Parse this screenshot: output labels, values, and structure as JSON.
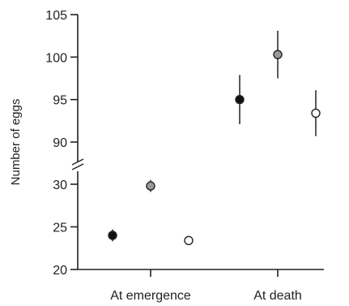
{
  "chart_data": {
    "type": "scatter",
    "ylabel": "Number of eggs",
    "categories": [
      "At emergence",
      "At death"
    ],
    "y_axis": {
      "broken": true,
      "lower_segment": {
        "range": [
          20,
          30
        ],
        "ticks": [
          20,
          25,
          30
        ]
      },
      "upper_segment": {
        "range": [
          90,
          105
        ],
        "ticks": [
          90,
          95,
          100,
          105
        ]
      }
    },
    "series": [
      {
        "color": "#111111",
        "values": [
          24.0,
          95.0
        ],
        "error_low": [
          23.3,
          92.1
        ],
        "error_high": [
          24.7,
          97.9
        ]
      },
      {
        "color": "#999999",
        "values": [
          29.8,
          100.3
        ],
        "error_low": [
          29.1,
          97.5
        ],
        "error_high": [
          30.5,
          103.1
        ]
      },
      {
        "color": "#ffffff",
        "values": [
          23.4,
          93.4
        ],
        "error_low": [
          23.4,
          90.7
        ],
        "error_high": [
          23.4,
          96.1
        ]
      }
    ],
    "grid": false,
    "legend": "none"
  }
}
